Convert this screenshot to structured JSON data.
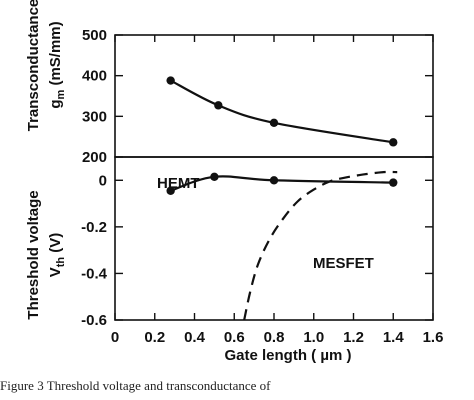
{
  "chart_data": [
    {
      "type": "line",
      "panel": "top",
      "ylabel_line1": "Transconductance",
      "ylabel_line2": "g",
      "ylabel_sub": "m",
      "ylabel_unit": "(mS/mm)",
      "ylim": [
        200,
        500
      ],
      "yticks": [
        200,
        300,
        400,
        500
      ],
      "xlim": [
        0,
        1.6
      ],
      "series": [
        {
          "style": "solid-with-markers",
          "x": [
            0.28,
            0.52,
            0.8,
            1.4
          ],
          "y": [
            388,
            327,
            284,
            236
          ]
        }
      ]
    },
    {
      "type": "line",
      "panel": "bottom",
      "ylabel_line1": "Threshold  voltage",
      "ylabel_line2": "V",
      "ylabel_sub": "th",
      "ylabel_unit": "(V)",
      "ylim": [
        -0.6,
        0.1
      ],
      "yticks": [
        0,
        -0.2,
        -0.4,
        -0.6
      ],
      "ytick_labels": [
        "0",
        "-0.2",
        "-0.4",
        "-0.6"
      ],
      "xlim": [
        0,
        1.6
      ],
      "xticks": [
        0,
        0.2,
        0.4,
        0.6,
        0.8,
        1.0,
        1.2,
        1.4,
        1.6
      ],
      "xtick_labels": [
        "0",
        "0.2",
        "0.4",
        "0.6",
        "0.8",
        "1.0",
        "1.2",
        "1.4",
        "1.6"
      ],
      "xlabel": "Gate  length  ( µm )",
      "series": [
        {
          "name": "HEMT",
          "style": "solid-with-markers",
          "x": [
            0.28,
            0.5,
            0.8,
            1.4
          ],
          "y": [
            -0.045,
            0.015,
            0.0,
            -0.01
          ]
        },
        {
          "name": "MESFET",
          "style": "dashed",
          "x": [
            0.65,
            0.68,
            0.72,
            0.78,
            0.85,
            0.92,
            1.0,
            1.08,
            1.15,
            1.25,
            1.35,
            1.42
          ],
          "y": [
            -0.6,
            -0.48,
            -0.36,
            -0.25,
            -0.16,
            -0.09,
            -0.04,
            -0.005,
            0.01,
            0.025,
            0.035,
            0.035
          ]
        }
      ]
    }
  ],
  "caption": "Figure 3 Threshold voltage and transconductance of"
}
